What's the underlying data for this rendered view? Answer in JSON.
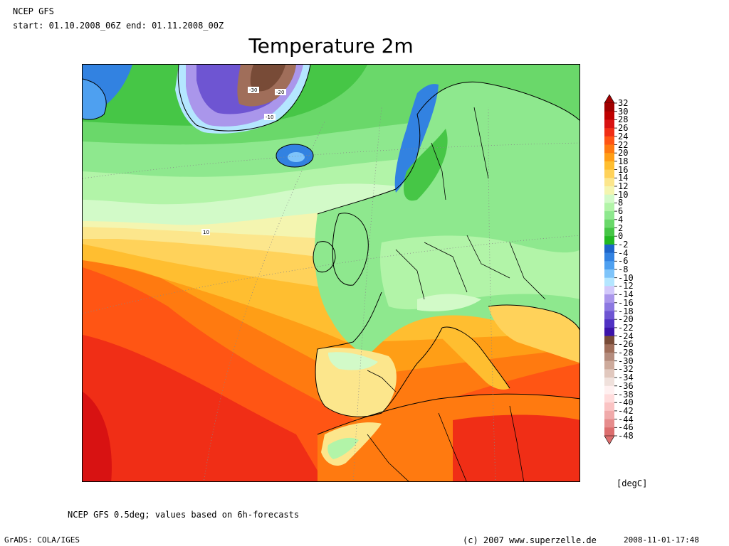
{
  "header": {
    "source": "NCEP GFS",
    "period": "start: 01.10.2008_06Z end: 01.11.2008_00Z",
    "title": "Temperature 2m"
  },
  "map": {
    "region": "Europe and North Atlantic",
    "contour_labels": [
      "-30",
      "-20",
      "-10",
      "10"
    ]
  },
  "legend": {
    "unit": "[degC]",
    "values": [
      "32",
      "30",
      "28",
      "26",
      "24",
      "22",
      "20",
      "18",
      "16",
      "14",
      "12",
      "10",
      "8",
      "6",
      "4",
      "2",
      "0",
      "-2",
      "-4",
      "-6",
      "-8",
      "-10",
      "-12",
      "-14",
      "-16",
      "-18",
      "-20",
      "-22",
      "-24",
      "-26",
      "-28",
      "-30",
      "-32",
      "-34",
      "-36",
      "-38",
      "-40",
      "-42",
      "-44",
      "-46",
      "-48"
    ],
    "colors": [
      "#a00000",
      "#be0000",
      "#d81212",
      "#f02e16",
      "#ff5514",
      "#ff7a10",
      "#ff9e16",
      "#ffbe30",
      "#ffd25a",
      "#fce68c",
      "#f4f5b0",
      "#d2fac8",
      "#b2f4a8",
      "#8ee88e",
      "#6ad86a",
      "#46c646",
      "#22b822",
      "#1d64c8",
      "#3282e1",
      "#4ea0f0",
      "#7ec4fa",
      "#b4e6ff",
      "#d2c8fa",
      "#aa96eb",
      "#8c78e1",
      "#6e55d2",
      "#5032c3",
      "#3c14aa",
      "#784b37",
      "#a06e5a",
      "#b48c7d",
      "#cdaa9b",
      "#e1c8be",
      "#f0e1dc",
      "#fff0f0",
      "#ffdcdc",
      "#fac3c3",
      "#f0aaaa",
      "#e68c8c",
      "#dc6e6e"
    ]
  },
  "footer": {
    "note": "NCEP GFS 0.5deg; values based on 6h-forecasts",
    "software": "GrADS: COLA/IGES",
    "copyright": "(c) 2007 www.superzelle.de",
    "timestamp": "2008-11-01-17:48"
  }
}
